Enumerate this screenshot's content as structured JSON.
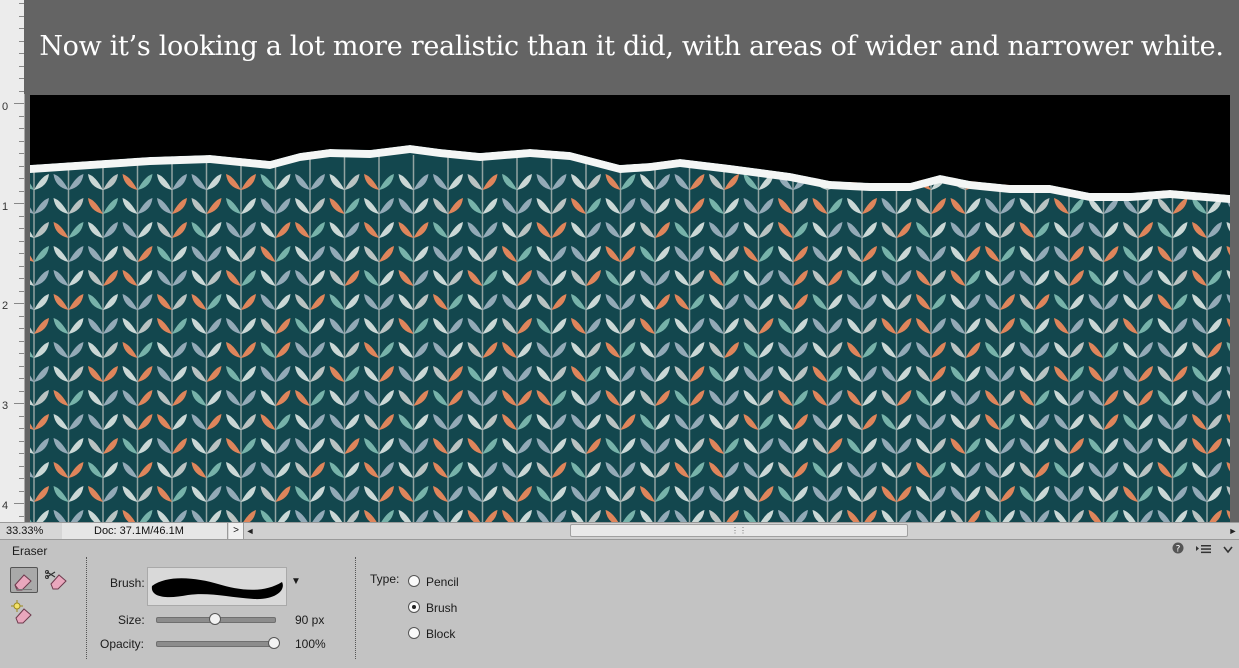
{
  "caption": "Now it’s looking a lot more realistic than it did, with areas of wider and narrower white.",
  "ruler": {
    "labels": [
      "0",
      "1",
      "2",
      "3",
      "4"
    ]
  },
  "status": {
    "zoom": "33.33%",
    "doc": "Doc: 37.1M/46.1M",
    "arrow": ">"
  },
  "tool_options": {
    "tool_name": "Eraser",
    "brush_label": "Brush:",
    "size_label": "Size:",
    "size_value": "90 px",
    "size_level": 0.5,
    "opacity_label": "Opacity:",
    "opacity_value": "100%",
    "opacity_level": 1.0,
    "type_label": "Type:",
    "types": [
      "Pencil",
      "Brush",
      "Block"
    ],
    "selected_type": "Brush",
    "icons": [
      "eraser-icon",
      "background-eraser-icon",
      "magic-eraser-icon",
      "help-icon",
      "panel-menu-icon",
      "collapse-icon"
    ]
  },
  "colors": {
    "workspace": "#646464",
    "canvas_bg": "#13474e",
    "torn_black": "#000000",
    "leaf_light": "#d9e3e1",
    "leaf_blue": "#9db2bf",
    "leaf_mint": "#7fbbb2",
    "leaf_grey": "#c7cccb",
    "leaf_orange": "#ef8a5c"
  }
}
